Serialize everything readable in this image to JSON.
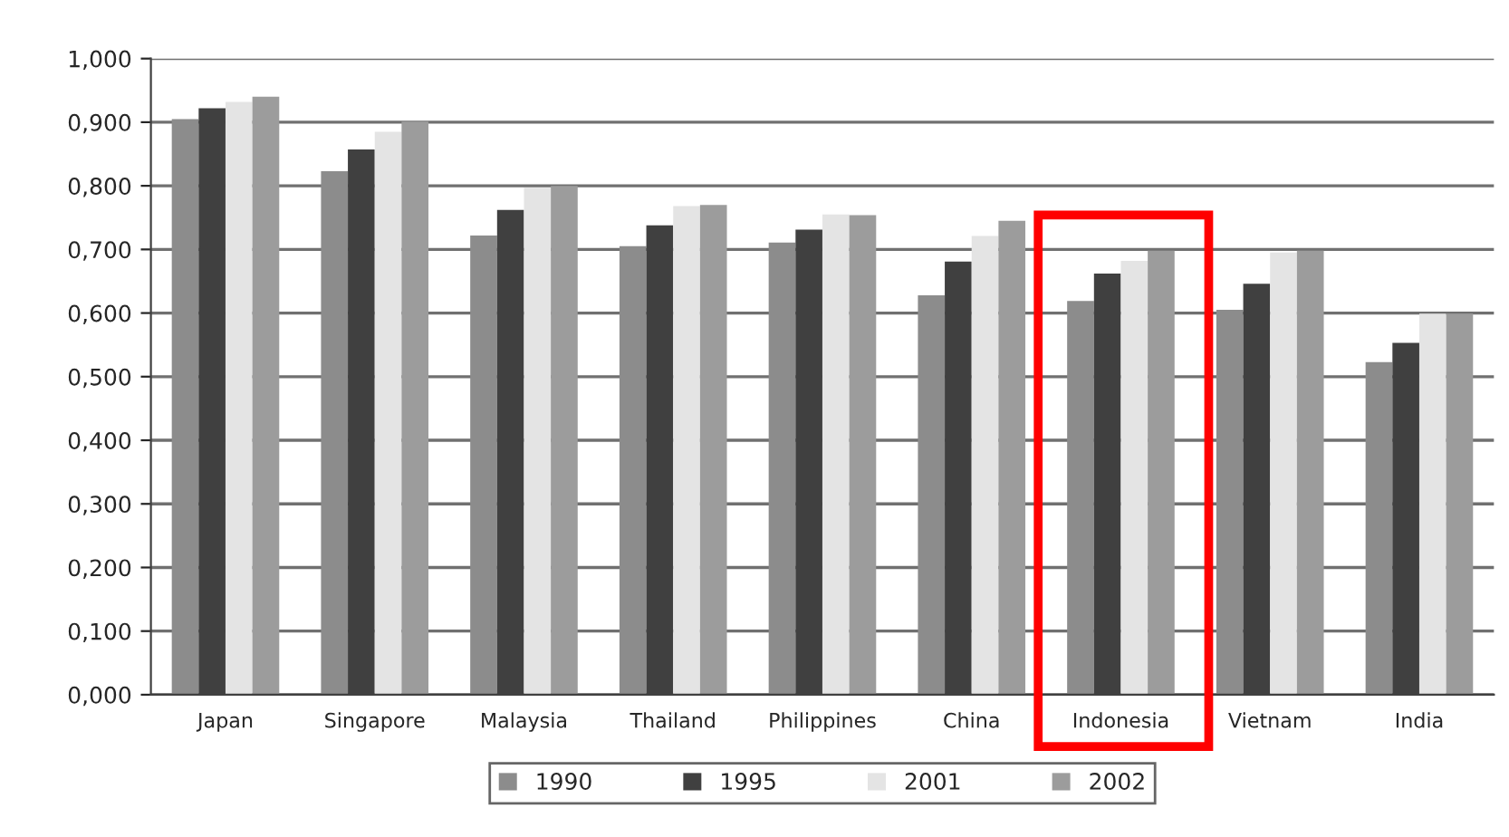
{
  "chart_data": {
    "type": "bar",
    "categories": [
      "Japan",
      "Singapore",
      "Malaysia",
      "Thailand",
      "Philippines",
      "China",
      "Indonesia",
      "Vietnam",
      "India"
    ],
    "series": [
      {
        "name": "1990",
        "color": "#8c8c8c",
        "values": [
          0.905,
          0.823,
          0.722,
          0.705,
          0.711,
          0.628,
          0.619,
          0.605,
          0.523
        ]
      },
      {
        "name": "1995",
        "color": "#404040",
        "values": [
          0.922,
          0.857,
          0.762,
          0.738,
          0.731,
          0.681,
          0.662,
          0.646,
          0.553
        ]
      },
      {
        "name": "2001",
        "color": "#e4e4e4",
        "values": [
          0.932,
          0.885,
          0.797,
          0.768,
          0.755,
          0.721,
          0.682,
          0.695,
          0.599
        ]
      },
      {
        "name": "2002",
        "color": "#9c9c9c",
        "values": [
          0.94,
          0.901,
          0.8,
          0.77,
          0.754,
          0.745,
          0.698,
          0.698,
          0.599
        ]
      }
    ],
    "ylim": [
      0,
      1
    ],
    "yticks": [
      {
        "value": 0,
        "label": "0,000"
      },
      {
        "value": 0.1,
        "label": "0,100"
      },
      {
        "value": 0.2,
        "label": "0,200"
      },
      {
        "value": 0.3,
        "label": "0,300"
      },
      {
        "value": 0.4,
        "label": "0,400"
      },
      {
        "value": 0.5,
        "label": "0,500"
      },
      {
        "value": 0.6,
        "label": "0,600"
      },
      {
        "value": 0.7,
        "label": "0,700"
      },
      {
        "value": 0.8,
        "label": "0,800"
      },
      {
        "value": 0.9,
        "label": "0,900"
      },
      {
        "value": 1,
        "label": "1,000"
      }
    ],
    "grid": "y",
    "legend": "bottom"
  }
}
